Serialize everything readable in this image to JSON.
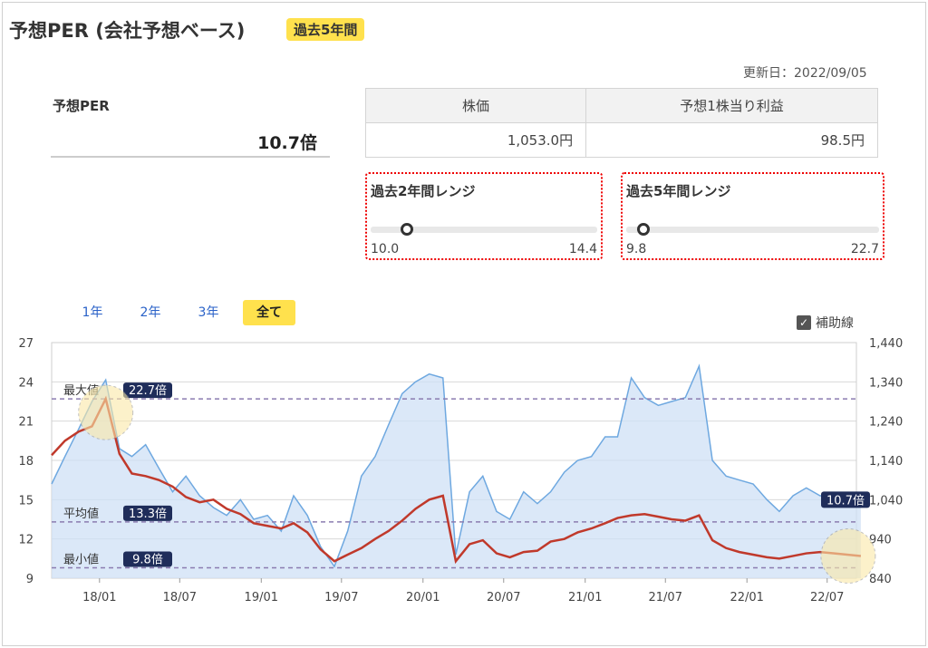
{
  "header": {
    "title": "予想PER (会社予想ベース)",
    "badge": "過去5年間",
    "updated": "更新日：2022/09/05"
  },
  "per": {
    "label": "予想PER",
    "value": "10.7倍"
  },
  "table": {
    "headers": [
      "株価",
      "予想1株当り利益"
    ],
    "values": [
      "1,053.0円",
      "98.5円"
    ]
  },
  "ranges": [
    {
      "title": "過去2年間レンジ",
      "min": "10.0",
      "max": "14.4",
      "current": 10.7
    },
    {
      "title": "過去5年間レンジ",
      "min": "9.8",
      "max": "22.7",
      "current": 10.7
    }
  ],
  "tabs": [
    {
      "label": "1年",
      "active": false
    },
    {
      "label": "2年",
      "active": false
    },
    {
      "label": "3年",
      "active": false
    },
    {
      "label": "全て",
      "active": true
    }
  ],
  "aux": {
    "label": "補助線",
    "checked": true
  },
  "colors": {
    "per_line": "#c0392b",
    "price_line": "#6ea8e0",
    "price_fill": "#cfe0f5",
    "ref_line": "#8b7cb0",
    "badge": "#ffe14d",
    "label_bg": "#1f2d5a"
  },
  "chart_data": {
    "type": "line",
    "x_ticks": [
      "18/01",
      "18/07",
      "19/01",
      "19/07",
      "20/01",
      "20/07",
      "21/01",
      "21/07",
      "22/01",
      "22/07"
    ],
    "y_left": {
      "range": [
        9,
        27
      ],
      "ticks": [
        "27",
        "24",
        "21",
        "18",
        "15",
        "12",
        "9"
      ]
    },
    "y_right": {
      "range": [
        840,
        1440
      ],
      "ticks": [
        "1,440",
        "1,340",
        "1,240",
        "1,140",
        "1,040",
        "940",
        "840"
      ]
    },
    "ref_lines": [
      {
        "label": "最大値",
        "value_label": "22.7倍",
        "value": 22.7
      },
      {
        "label": "平均値",
        "value_label": "13.3倍",
        "value": 13.3
      },
      {
        "label": "最小値",
        "value_label": "9.8倍",
        "value": 9.8
      }
    ],
    "current_label": "10.7倍",
    "series": [
      {
        "axis": "left",
        "x": [
          "2017/09",
          "2017/10",
          "2017/11",
          "2017/12",
          "2018/01",
          "2018/02",
          "2018/03",
          "2018/04",
          "2018/05",
          "2018/06",
          "2018/07",
          "2018/08",
          "2018/09",
          "2018/10",
          "2018/11",
          "2018/12",
          "2019/01",
          "2019/02",
          "2019/03",
          "2019/04",
          "2019/05",
          "2019/06",
          "2019/07",
          "2019/08",
          "2019/09",
          "2019/10",
          "2019/11",
          "2019/12",
          "2020/01",
          "2020/02",
          "2020/03",
          "2020/04",
          "2020/05",
          "2020/06",
          "2020/07",
          "2020/08",
          "2020/09",
          "2020/10",
          "2020/11",
          "2020/12",
          "2021/01",
          "2021/02",
          "2021/03",
          "2021/04",
          "2021/05",
          "2021/06",
          "2021/07",
          "2021/08",
          "2021/09",
          "2021/10",
          "2021/11",
          "2021/12",
          "2022/01",
          "2022/02",
          "2022/03",
          "2022/04",
          "2022/05",
          "2022/06",
          "2022/07",
          "2022/08",
          "2022/09"
        ],
        "y": [
          18.4,
          19.5,
          20.2,
          20.6,
          22.7,
          18.5,
          17.0,
          16.8,
          16.5,
          16.0,
          15.2,
          14.8,
          15.0,
          14.3,
          13.9,
          13.2,
          13.0,
          12.8,
          13.2,
          12.5,
          11.2,
          10.3,
          10.8,
          11.3,
          12.0,
          12.6,
          13.4,
          14.3,
          15.0,
          15.3,
          10.3,
          11.6,
          11.9,
          10.9,
          10.6,
          11.0,
          11.1,
          11.8,
          12.0,
          12.5,
          12.8,
          13.2,
          13.6,
          13.8,
          13.9,
          13.7,
          13.5,
          13.4,
          13.8,
          11.9,
          11.3,
          11.0,
          10.8,
          10.6,
          10.5,
          10.7,
          10.9,
          11.0,
          10.9,
          10.8,
          10.7
        ]
      },
      {
        "axis": "right",
        "x": [
          "2017/09",
          "2017/10",
          "2017/11",
          "2017/12",
          "2018/01",
          "2018/02",
          "2018/03",
          "2018/04",
          "2018/05",
          "2018/06",
          "2018/07",
          "2018/08",
          "2018/09",
          "2018/10",
          "2018/11",
          "2018/12",
          "2019/01",
          "2019/02",
          "2019/03",
          "2019/04",
          "2019/05",
          "2019/06",
          "2019/07",
          "2019/08",
          "2019/09",
          "2019/10",
          "2019/11",
          "2019/12",
          "2020/01",
          "2020/02",
          "2020/03",
          "2020/04",
          "2020/05",
          "2020/06",
          "2020/07",
          "2020/08",
          "2020/09",
          "2020/10",
          "2020/11",
          "2020/12",
          "2021/01",
          "2021/02",
          "2021/03",
          "2021/04",
          "2021/05",
          "2021/06",
          "2021/07",
          "2021/08",
          "2021/09",
          "2021/10",
          "2021/11",
          "2021/12",
          "2022/01",
          "2022/02",
          "2022/03",
          "2022/04",
          "2022/05",
          "2022/06",
          "2022/07",
          "2022/08",
          "2022/09"
        ],
        "y": [
          1080,
          1150,
          1220,
          1290,
          1345,
          1170,
          1150,
          1180,
          1120,
          1060,
          1100,
          1050,
          1020,
          1000,
          1040,
          990,
          1000,
          960,
          1050,
          1000,
          920,
          870,
          960,
          1100,
          1150,
          1230,
          1310,
          1340,
          1360,
          1350,
          900,
          1060,
          1100,
          1010,
          990,
          1060,
          1030,
          1060,
          1110,
          1140,
          1150,
          1200,
          1200,
          1350,
          1300,
          1280,
          1290,
          1300,
          1380,
          1140,
          1100,
          1090,
          1080,
          1040,
          1010,
          1050,
          1070,
          1050,
          1050,
          1040,
          1050
        ]
      }
    ]
  }
}
